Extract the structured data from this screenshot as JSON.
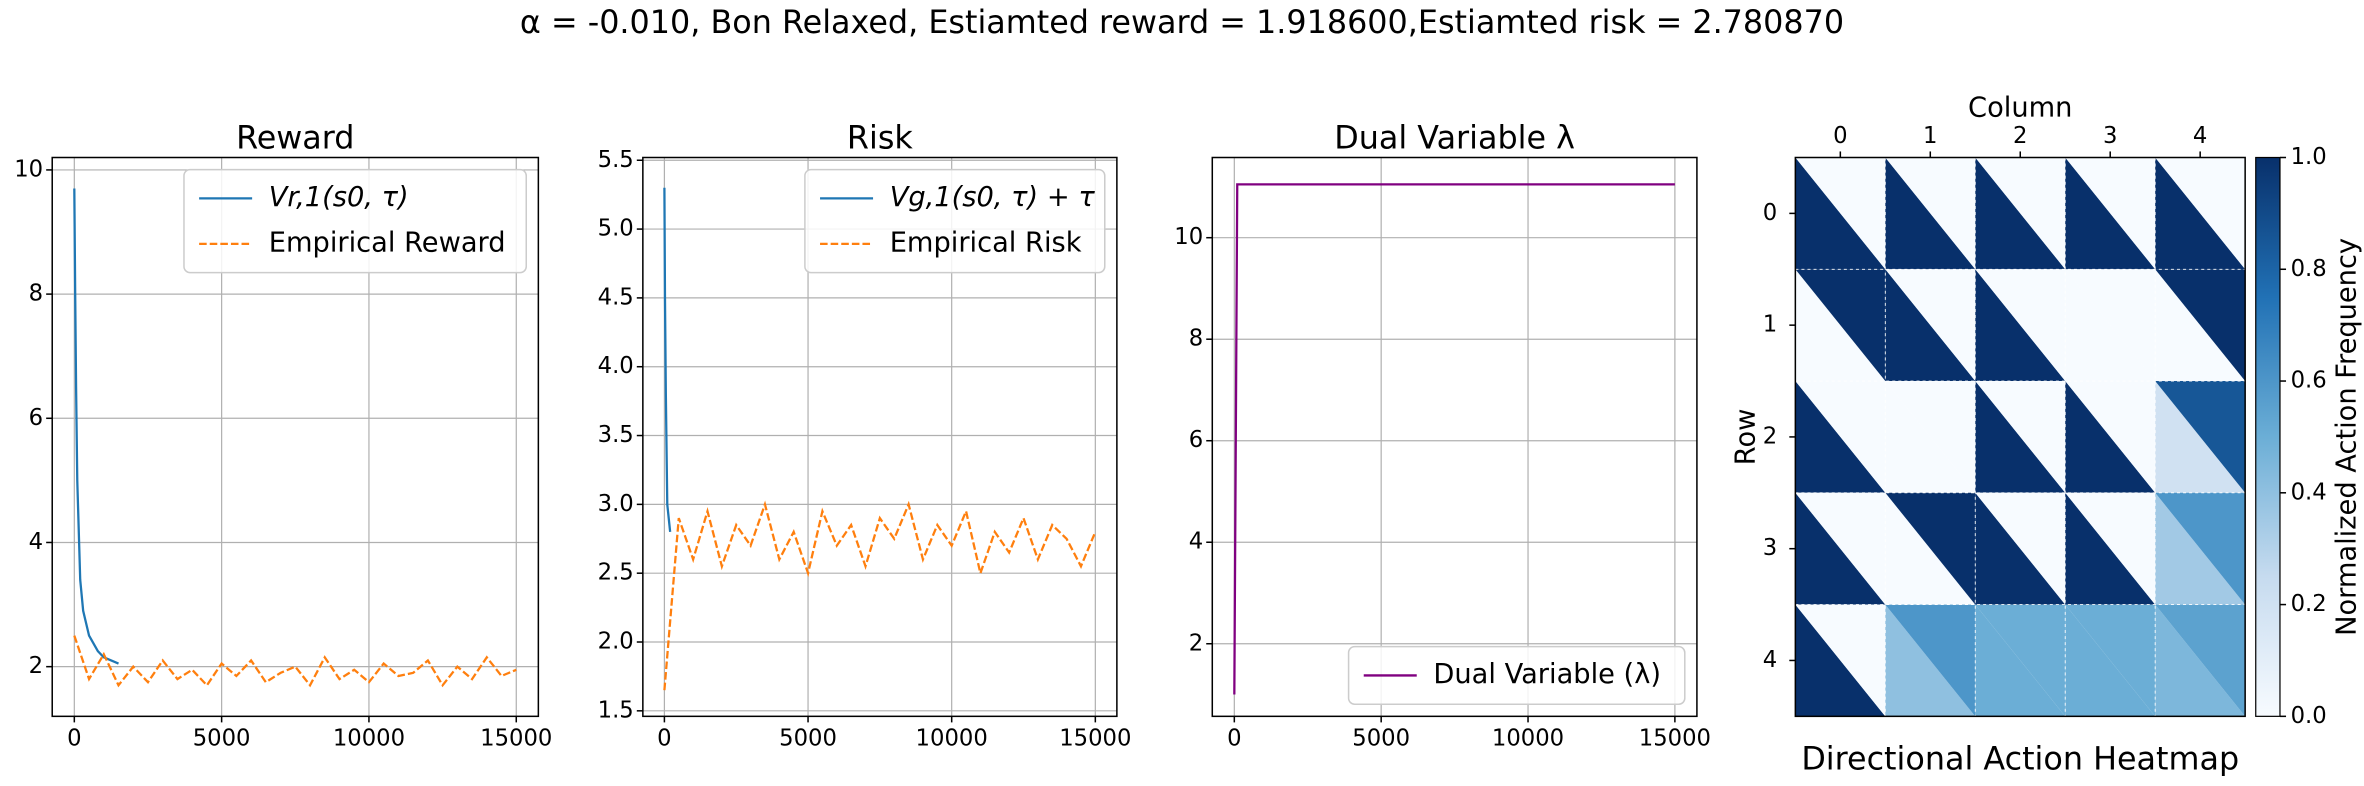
{
  "figure_title": "α = -0.010, Bon Relaxed, Estiamted reward = 1.918600,Estiamted risk = 2.780870",
  "chart_data": [
    {
      "type": "line",
      "title": "Reward",
      "grid": true,
      "legend": "upper right",
      "xlim": [
        -750,
        15750
      ],
      "ylim": [
        1.2,
        10.2
      ],
      "xticks": [
        0,
        5000,
        10000,
        15000
      ],
      "yticks": [
        2,
        4,
        6,
        8,
        10
      ],
      "series": [
        {
          "name": "Vr,1(s0, τ)",
          "color": "#1f77b4",
          "style": "solid",
          "x": [
            0,
            30,
            60,
            100,
            200,
            300,
            500,
            800,
            1000,
            1500
          ],
          "values": [
            9.7,
            8.0,
            6.5,
            5.0,
            3.4,
            2.9,
            2.5,
            2.25,
            2.15,
            2.05
          ]
        },
        {
          "name": "Empirical Reward",
          "color": "#ff7f0e",
          "style": "dashed",
          "x": [
            0,
            500,
            1000,
            1500,
            2000,
            2500,
            3000,
            3500,
            4000,
            4500,
            5000,
            5500,
            6000,
            6500,
            7000,
            7500,
            8000,
            8500,
            9000,
            9500,
            10000,
            10500,
            11000,
            11500,
            12000,
            12500,
            13000,
            13500,
            14000,
            14500,
            15000
          ],
          "values": [
            2.5,
            1.8,
            2.2,
            1.7,
            2.0,
            1.75,
            2.1,
            1.8,
            1.95,
            1.7,
            2.05,
            1.85,
            2.1,
            1.75,
            1.9,
            2.0,
            1.7,
            2.15,
            1.8,
            1.95,
            1.75,
            2.05,
            1.85,
            1.9,
            2.1,
            1.7,
            2.0,
            1.8,
            2.15,
            1.85,
            1.95
          ]
        }
      ]
    },
    {
      "type": "line",
      "title": "Risk",
      "grid": true,
      "legend": "upper right",
      "xlim": [
        -750,
        15750
      ],
      "ylim": [
        1.46,
        5.52
      ],
      "xticks": [
        0,
        5000,
        10000,
        15000
      ],
      "yticks": [
        1.5,
        {
          "value": 2,
          "label": "2.0"
        },
        2.5,
        {
          "value": 3,
          "label": "3.0"
        },
        3.5,
        {
          "value": 4,
          "label": "4.0"
        },
        4.5,
        {
          "value": 5,
          "label": "5.0"
        },
        5.5
      ],
      "series": [
        {
          "name": "Vg,1(s0, τ) + τ",
          "color": "#1f77b4",
          "style": "solid",
          "x": [
            0,
            20,
            50,
            100,
            200
          ],
          "values": [
            5.3,
            4.5,
            3.8,
            3.0,
            2.8
          ]
        },
        {
          "name": "Empirical Risk",
          "color": "#ff7f0e",
          "style": "dashed",
          "x": [
            0,
            500,
            1000,
            1500,
            2000,
            2500,
            3000,
            3500,
            4000,
            4500,
            5000,
            5500,
            6000,
            6500,
            7000,
            7500,
            8000,
            8500,
            9000,
            9500,
            10000,
            10500,
            11000,
            11500,
            12000,
            12500,
            13000,
            13500,
            14000,
            14500,
            15000
          ],
          "values": [
            1.65,
            2.9,
            2.6,
            2.95,
            2.55,
            2.85,
            2.7,
            3.0,
            2.6,
            2.8,
            2.5,
            2.95,
            2.7,
            2.85,
            2.55,
            2.9,
            2.75,
            3.0,
            2.6,
            2.85,
            2.7,
            2.95,
            2.5,
            2.8,
            2.65,
            2.9,
            2.6,
            2.85,
            2.75,
            2.55,
            2.8
          ]
        }
      ]
    },
    {
      "type": "line",
      "title": "Dual Variable λ",
      "grid": true,
      "legend": "lower right",
      "xlim": [
        -750,
        15750
      ],
      "ylim": [
        0.57,
        11.58
      ],
      "xticks": [
        0,
        5000,
        10000,
        15000
      ],
      "yticks": [
        2,
        4,
        6,
        8,
        10
      ],
      "series": [
        {
          "name": "Dual Variable (λ)",
          "color": "#800080",
          "style": "solid",
          "x": [
            0,
            100,
            15000
          ],
          "values": [
            1.0,
            11.05,
            11.05
          ]
        }
      ]
    },
    {
      "type": "heatmap",
      "title": "Directional Action Heatmap",
      "xlabel": "Column",
      "ylabel": "Row",
      "xticks": [
        0,
        1,
        2,
        3,
        4
      ],
      "yticks": [
        0,
        1,
        2,
        3,
        4
      ],
      "lower": [
        [
          1,
          1,
          1,
          1,
          1
        ],
        [
          0,
          1,
          1,
          0,
          0
        ],
        [
          1,
          0,
          1,
          1,
          0.2
        ],
        [
          1,
          0,
          1,
          1,
          0.35
        ],
        [
          1,
          0.4,
          0.5,
          0.5,
          0.45
        ]
      ],
      "upper": [
        [
          0,
          0,
          0,
          0,
          0
        ],
        [
          1,
          0,
          0,
          0,
          1
        ],
        [
          0,
          0,
          0,
          0,
          0.85
        ],
        [
          0,
          1,
          0,
          0,
          0.6
        ],
        [
          0,
          0.6,
          0.5,
          0.5,
          0.55
        ]
      ],
      "colorbar_label": "Normalized Action Frequency",
      "clim": [
        0,
        1
      ],
      "cticks": [
        {
          "value": 0,
          "label": "0.0"
        },
        {
          "value": 0.2,
          "label": "0.2"
        },
        {
          "value": 0.4,
          "label": "0.4"
        },
        {
          "value": 0.6,
          "label": "0.6"
        },
        {
          "value": 0.8,
          "label": "0.8"
        },
        {
          "value": 1,
          "label": "1.0"
        }
      ]
    }
  ]
}
